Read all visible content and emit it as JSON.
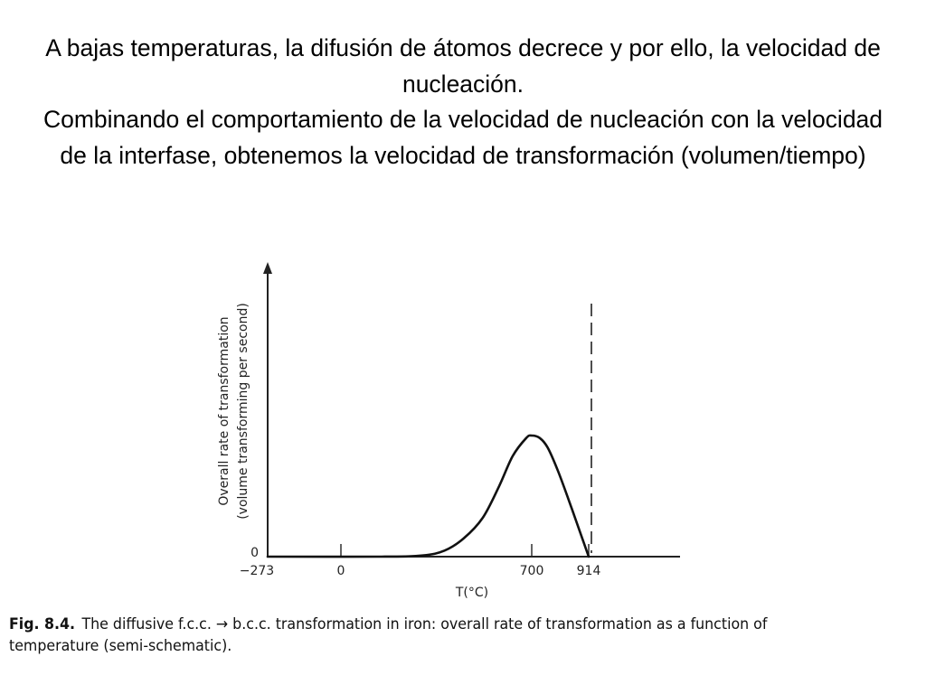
{
  "slide": {
    "paragraph1": "A bajas temperaturas, la difusión de átomos decrece y por ello, la velocidad de nucleación.",
    "paragraph2": "Combinando el comportamiento de la velocidad de nucleación con la velocidad de la interfase, obtenemos la velocidad de transformación (volumen/tiempo)"
  },
  "figure": {
    "caption_label": "Fig. 8.4.",
    "caption_text": "The diffusive f.c.c. → b.c.c. transformation in iron: overall rate of transformation as a function of temperature (semi-schematic)."
  },
  "chart_data": {
    "type": "line",
    "xlabel": "T(°C)",
    "ylabel_line1": "Overall rate of transformation",
    "ylabel_line2": "(volume transforming per second)",
    "y_zero_label": "0",
    "x_tick_labels": [
      "−273",
      "0",
      "700",
      "914"
    ],
    "x_ticks": [
      -273,
      0,
      700,
      914
    ],
    "vline_x": 914,
    "vline_style": "dashed",
    "series": [
      {
        "x": [
          -273,
          150,
          300,
          380,
          450,
          520,
          580,
          630,
          680,
          700,
          730,
          760,
          800,
          850,
          890,
          914
        ],
        "y": [
          0,
          0,
          0.01,
          0.05,
          0.15,
          0.32,
          0.58,
          0.83,
          0.98,
          1.0,
          0.98,
          0.9,
          0.7,
          0.4,
          0.15,
          0
        ]
      }
    ]
  }
}
